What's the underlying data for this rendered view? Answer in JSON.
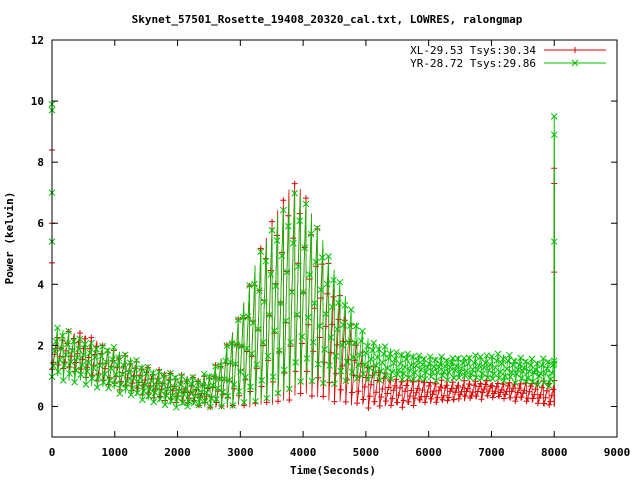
{
  "chart_data": {
    "type": "scatter",
    "title": "Skynet_57501_Rosette_19408_20320_cal.txt, LOWRES, ralongmap",
    "xlabel": "Time(Seconds)",
    "ylabel": "Power (kelvin)",
    "xlim": [
      0,
      9000
    ],
    "ylim": [
      -1,
      12
    ],
    "xticks": [
      0,
      1000,
      2000,
      3000,
      4000,
      5000,
      6000,
      7000,
      8000,
      9000
    ],
    "yticks": [
      0,
      2,
      4,
      6,
      8,
      10,
      12
    ],
    "xtick_labels": [
      "0",
      "1000",
      "2000",
      "3000",
      "4000",
      "5000",
      "6000",
      "7000",
      "8000",
      "9000"
    ],
    "ytick_labels": [
      "0",
      "2",
      "4",
      "6",
      "8",
      "10",
      "12"
    ],
    "grid": false,
    "legend_position": "top-right",
    "legend": [
      "XL-29.53 Tsys:30.34",
      "YR-28.72 Tsys:29.86"
    ],
    "series": [
      {
        "name": "XL-29.53 Tsys:30.34",
        "color": "#e00000",
        "marker": "plus",
        "upper_envelope": [
          [
            0,
            2.1
          ],
          [
            200,
            2.4
          ],
          [
            500,
            2.4
          ],
          [
            800,
            2.0
          ],
          [
            1000,
            1.8
          ],
          [
            1300,
            1.5
          ],
          [
            1600,
            1.2
          ],
          [
            2000,
            1.0
          ],
          [
            2300,
            0.9
          ],
          [
            2500,
            1.0
          ],
          [
            2700,
            1.6
          ],
          [
            3000,
            3.0
          ],
          [
            3300,
            5.0
          ],
          [
            3600,
            6.5
          ],
          [
            3800,
            7.2
          ],
          [
            3900,
            7.4
          ],
          [
            4000,
            7.0
          ],
          [
            4200,
            6.0
          ],
          [
            4500,
            4.0
          ],
          [
            4800,
            2.5
          ],
          [
            5000,
            1.5
          ],
          [
            5500,
            0.9
          ],
          [
            6000,
            0.8
          ],
          [
            6500,
            0.8
          ],
          [
            7000,
            0.8
          ],
          [
            7500,
            0.8
          ],
          [
            7900,
            0.8
          ],
          [
            8000,
            0.8
          ]
        ],
        "lower_envelope": [
          [
            0,
            1.2
          ],
          [
            200,
            1.2
          ],
          [
            500,
            1.0
          ],
          [
            1000,
            0.6
          ],
          [
            1500,
            0.4
          ],
          [
            2000,
            0.1
          ],
          [
            2500,
            0.0
          ],
          [
            3000,
            0.0
          ],
          [
            3500,
            0.1
          ],
          [
            4000,
            0.4
          ],
          [
            4500,
            0.2
          ],
          [
            5000,
            0.0
          ],
          [
            5500,
            0.0
          ],
          [
            6000,
            0.1
          ],
          [
            6500,
            0.2
          ],
          [
            7000,
            0.3
          ],
          [
            7500,
            0.2
          ],
          [
            8000,
            0.0
          ]
        ],
        "spikes": [
          [
            0,
            8.4
          ],
          [
            0,
            6.0
          ],
          [
            0,
            4.7
          ],
          [
            8000,
            7.8
          ],
          [
            8000,
            7.3
          ],
          [
            8000,
            4.4
          ]
        ]
      },
      {
        "name": "YR-28.72 Tsys:29.86",
        "color": "#00c000",
        "marker": "cross",
        "upper_envelope": [
          [
            0,
            2.6
          ],
          [
            200,
            2.5
          ],
          [
            500,
            2.2
          ],
          [
            800,
            2.0
          ],
          [
            1000,
            1.9
          ],
          [
            1300,
            1.5
          ],
          [
            1600,
            1.2
          ],
          [
            2000,
            1.0
          ],
          [
            2300,
            0.9
          ],
          [
            2500,
            1.1
          ],
          [
            2700,
            1.6
          ],
          [
            3000,
            3.0
          ],
          [
            3300,
            5.0
          ],
          [
            3600,
            6.2
          ],
          [
            3800,
            6.8
          ],
          [
            3900,
            7.0
          ],
          [
            4000,
            6.8
          ],
          [
            4200,
            6.0
          ],
          [
            4500,
            4.5
          ],
          [
            4800,
            3.0
          ],
          [
            5000,
            2.2
          ],
          [
            5500,
            1.8
          ],
          [
            6000,
            1.6
          ],
          [
            6500,
            1.6
          ],
          [
            7000,
            1.7
          ],
          [
            7500,
            1.6
          ],
          [
            7900,
            1.5
          ],
          [
            8000,
            1.5
          ]
        ],
        "lower_envelope": [
          [
            0,
            1.0
          ],
          [
            200,
            0.9
          ],
          [
            500,
            0.8
          ],
          [
            1000,
            0.5
          ],
          [
            1500,
            0.2
          ],
          [
            2000,
            0.0
          ],
          [
            2500,
            0.0
          ],
          [
            3000,
            0.1
          ],
          [
            3500,
            0.3
          ],
          [
            4000,
            0.8
          ],
          [
            4500,
            0.8
          ],
          [
            5000,
            0.9
          ],
          [
            5500,
            0.9
          ],
          [
            6000,
            0.9
          ],
          [
            6500,
            0.9
          ],
          [
            7000,
            0.9
          ],
          [
            7500,
            0.8
          ],
          [
            8000,
            0.7
          ]
        ],
        "spikes": [
          [
            0,
            9.9
          ],
          [
            0,
            9.7
          ],
          [
            0,
            7.0
          ],
          [
            0,
            5.4
          ],
          [
            8000,
            9.5
          ],
          [
            8000,
            8.9
          ],
          [
            8000,
            5.4
          ],
          [
            8000,
            1.4
          ]
        ]
      }
    ]
  }
}
